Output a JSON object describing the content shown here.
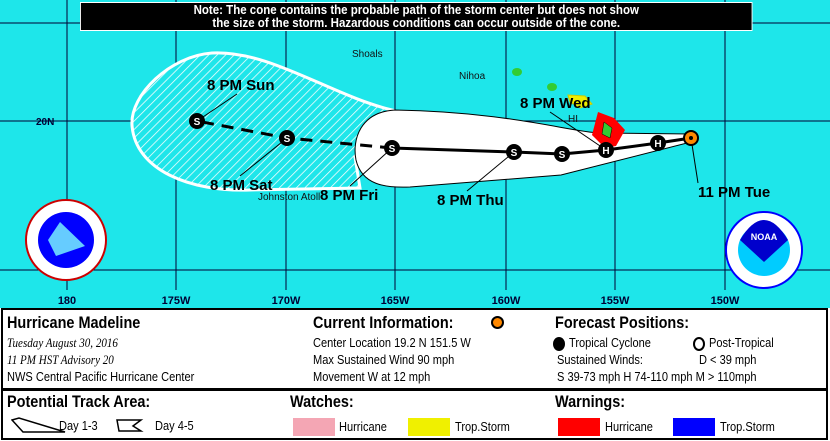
{
  "note": {
    "line1": "Note: The cone contains the probable path of the storm center but does not show",
    "line2": "the size of the storm. Hazardous conditions can occur outside of the cone."
  },
  "map": {
    "ocean_color": "#1ee6ea",
    "longitude_labels": [
      "180",
      "175W",
      "170W",
      "165W",
      "160W",
      "155W",
      "150W"
    ],
    "latitude_labels": [
      "20N"
    ],
    "place_labels": [
      "Shoals",
      "Nihoa",
      "Johnston Atoll",
      "HI"
    ],
    "forecast_points": [
      {
        "time": "11 PM Tue",
        "type": "current"
      },
      {
        "time": "",
        "type": "H"
      },
      {
        "time": "8 PM Wed",
        "type": "H"
      },
      {
        "time": "",
        "type": "S"
      },
      {
        "time": "8 PM Thu",
        "type": "S"
      },
      {
        "time": "8 PM Fri",
        "type": "S"
      },
      {
        "time": "8 PM Sat",
        "type": "S"
      },
      {
        "time": "8 PM Sun",
        "type": "S"
      }
    ],
    "logos": {
      "left": "NATIONAL WEATHER SERVICE",
      "right": "NOAA"
    }
  },
  "storm": {
    "name": "Hurricane Madeline",
    "date": "Tuesday  August 30, 2016",
    "advisory": "11 PM HST Advisory 20",
    "center": "NWS Central Pacific Hurricane Center"
  },
  "current": {
    "title": "Current Information:",
    "location": "Center Location 19.2 N  151.5 W",
    "wind": "Max Sustained Wind  90 mph",
    "movement": "Movement W at  12 mph"
  },
  "forecast": {
    "title": "Forecast Positions:",
    "tropical": "Tropical Cyclone",
    "post": "Post-Tropical",
    "winds_label": "Sustained Winds:",
    "d": "D  < 39 mph",
    "scale": "S  39-73 mph  H  74-110 mph  M  > 110mph"
  },
  "track": {
    "title": "Potential Track Area:",
    "day13": "Day 1-3",
    "day45": "Day 4-5"
  },
  "watches": {
    "title": "Watches:",
    "hurricane": "Hurricane",
    "ts": "Trop.Storm",
    "hurricane_color": "#f4a6b4",
    "ts_color": "#f0f000"
  },
  "warnings": {
    "title": "Warnings:",
    "hurricane": "Hurricane",
    "ts": "Trop.Storm",
    "hurricane_color": "#ff0000",
    "ts_color": "#0000ff"
  }
}
